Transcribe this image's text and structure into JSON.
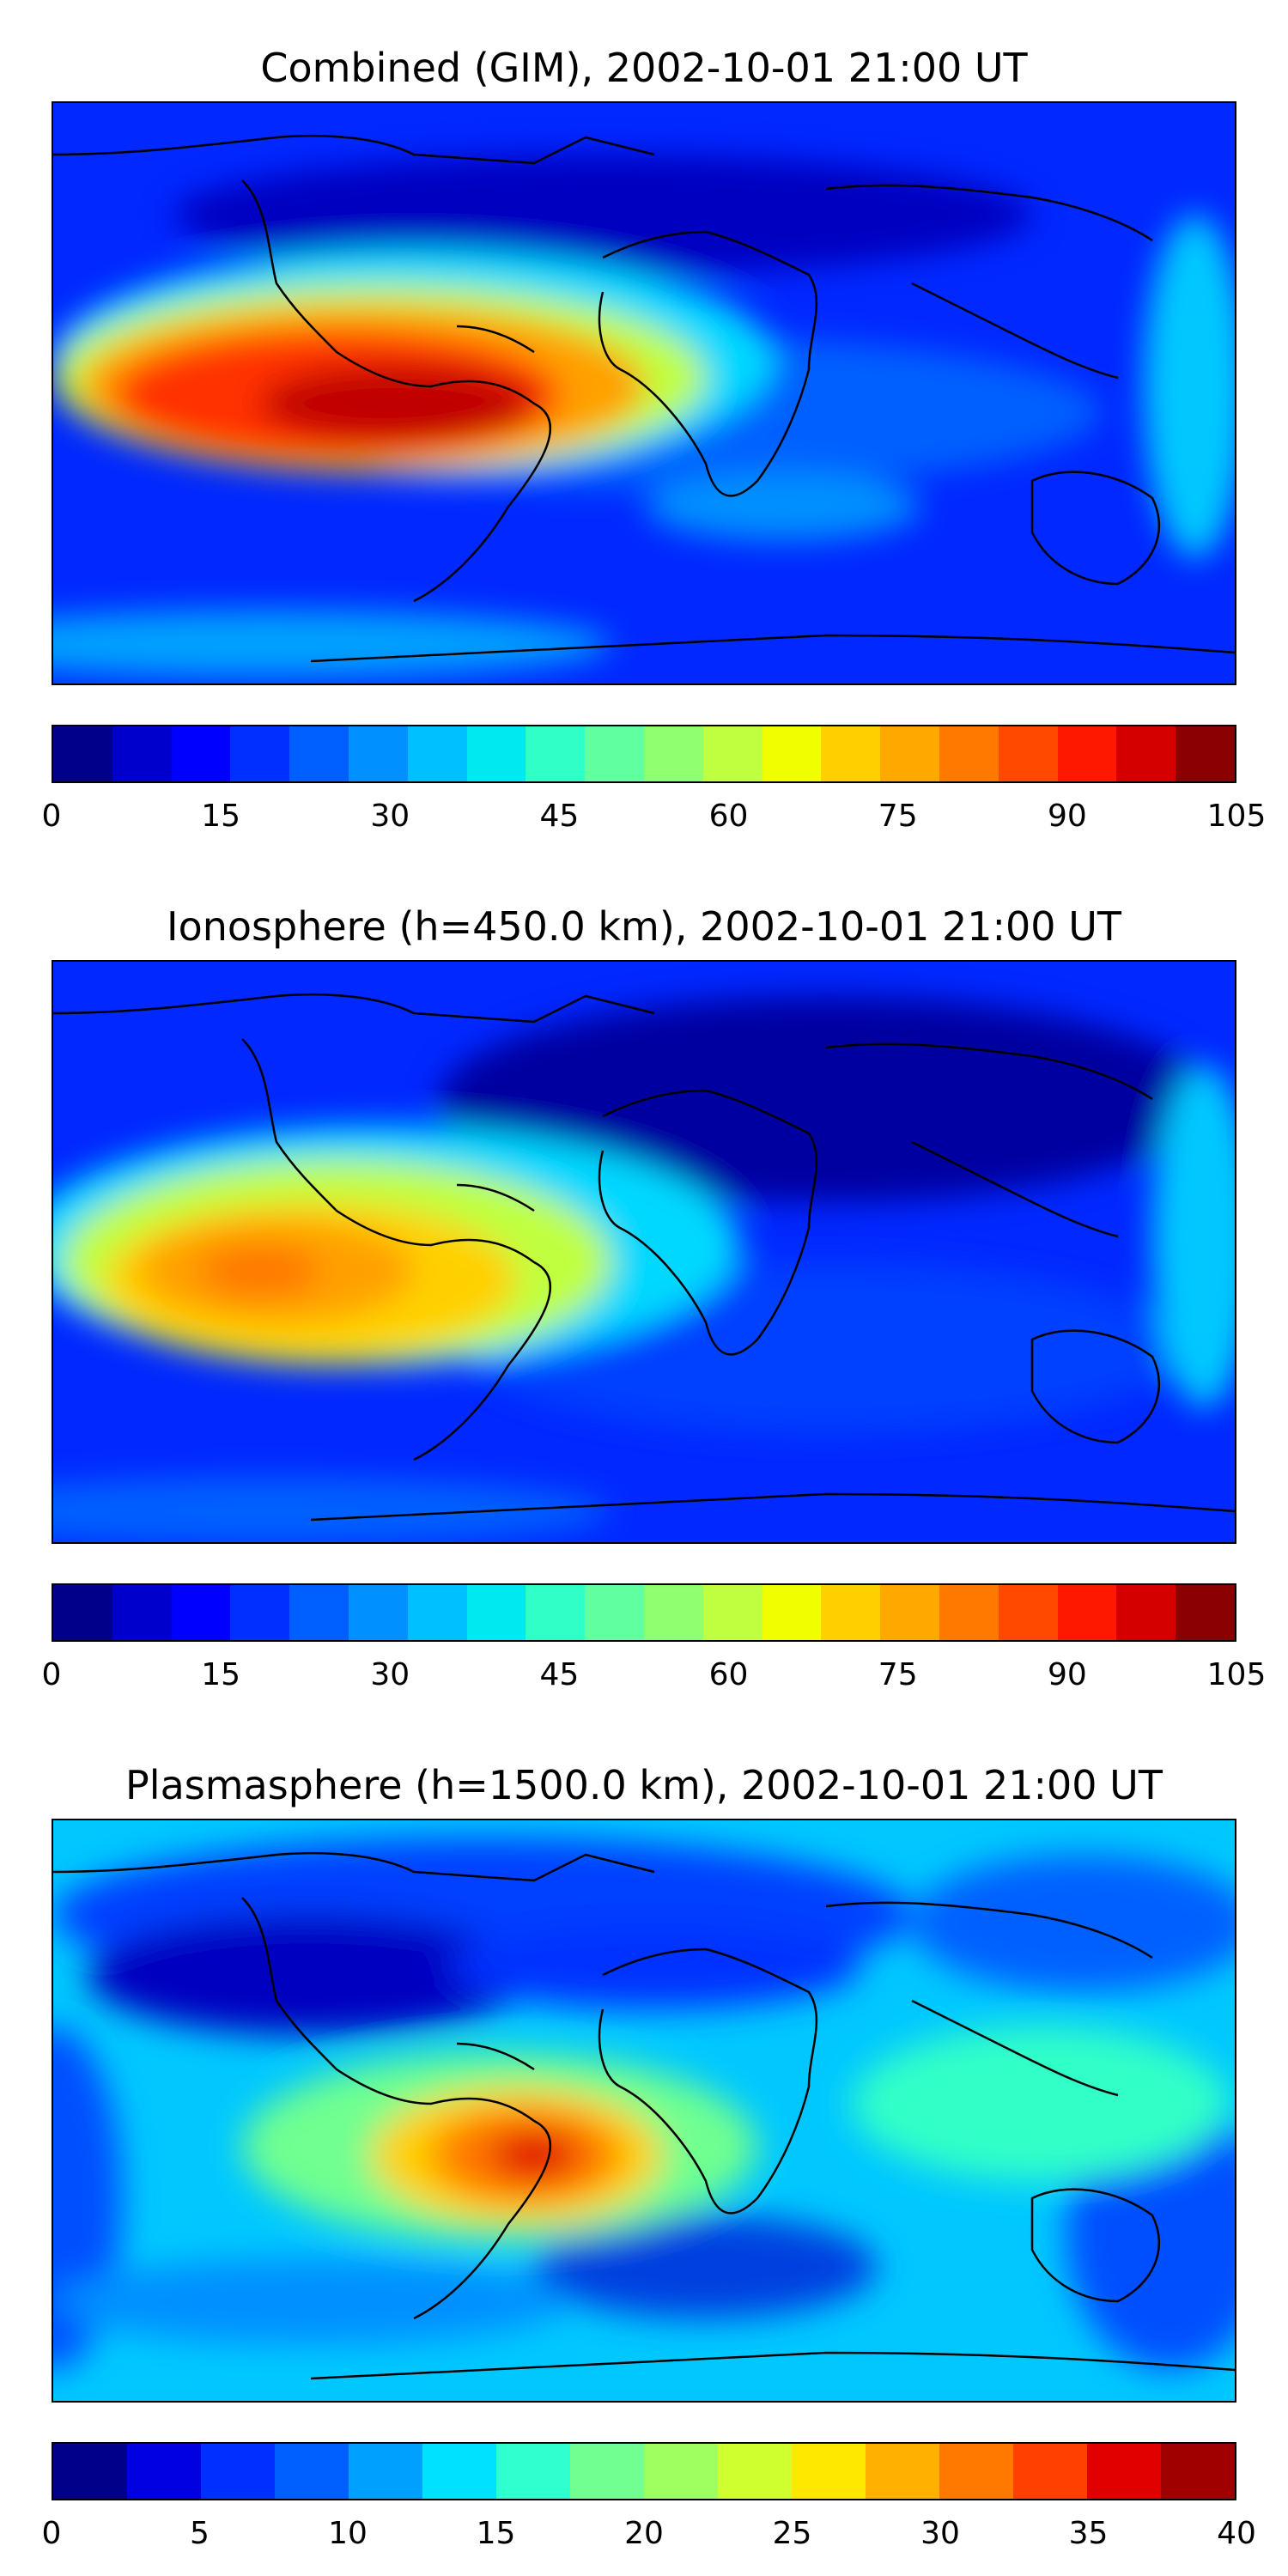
{
  "panels": [
    {
      "title": "Combined (GIM), 2002-10-01 21:00 UT",
      "colorbar": {
        "min": 0,
        "max": 105,
        "ticks": [
          "0",
          "15",
          "30",
          "45",
          "60",
          "75",
          "90",
          "105"
        ],
        "colors": [
          "#00008b",
          "#0000cd",
          "#0000ff",
          "#0030ff",
          "#0060ff",
          "#0090ff",
          "#00c0ff",
          "#00e8f0",
          "#30ffc8",
          "#60ffa0",
          "#90ff70",
          "#c0ff40",
          "#f0ff00",
          "#ffd000",
          "#ffa800",
          "#ff7800",
          "#ff4800",
          "#ff1800",
          "#d40000",
          "#8b0000"
        ]
      }
    },
    {
      "title": "Ionosphere  (h=450.0 km), 2002-10-01 21:00 UT",
      "colorbar": {
        "min": 0,
        "max": 105,
        "ticks": [
          "0",
          "15",
          "30",
          "45",
          "60",
          "75",
          "90",
          "105"
        ],
        "colors": [
          "#00008b",
          "#0000cd",
          "#0000ff",
          "#0030ff",
          "#0060ff",
          "#0090ff",
          "#00c0ff",
          "#00e8f0",
          "#30ffc8",
          "#60ffa0",
          "#90ff70",
          "#c0ff40",
          "#f0ff00",
          "#ffd000",
          "#ffa800",
          "#ff7800",
          "#ff4800",
          "#ff1800",
          "#d40000",
          "#8b0000"
        ]
      }
    },
    {
      "title": "Plasmasphere (h=1500.0 km), 2002-10-01 21:00 UT",
      "colorbar": {
        "min": 0,
        "max": 40,
        "ticks": [
          "0",
          "5",
          "10",
          "15",
          "20",
          "25",
          "30",
          "35",
          "40"
        ],
        "colors": [
          "#00008b",
          "#0000e0",
          "#0030ff",
          "#0060ff",
          "#00a0ff",
          "#00e0ff",
          "#30ffd0",
          "#70ff90",
          "#a0ff60",
          "#d0ff30",
          "#ffe800",
          "#ffb000",
          "#ff7800",
          "#ff4000",
          "#e00000",
          "#a00000"
        ]
      }
    }
  ]
}
